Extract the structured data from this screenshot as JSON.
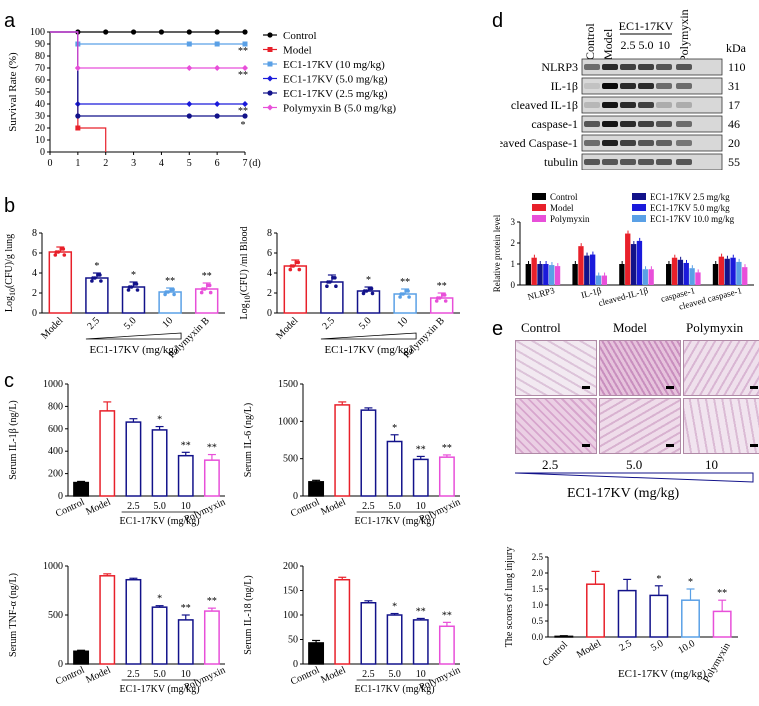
{
  "panel_letters": [
    "a",
    "b",
    "c",
    "d",
    "e"
  ],
  "chart_a": {
    "type": "line",
    "ylabel": "Survival Rate (%)",
    "xunit": "(d)",
    "x": [
      0,
      1,
      2,
      3,
      4,
      5,
      6,
      7
    ],
    "xticks": [
      "0",
      "1",
      "2",
      "3",
      "4",
      "5",
      "6",
      "7"
    ],
    "yticks": [
      "0",
      "10",
      "20",
      "30",
      "40",
      "50",
      "60",
      "70",
      "80",
      "90",
      "100"
    ],
    "ylim": [
      0,
      100
    ],
    "series": [
      {
        "name": "Control",
        "color": "#000000",
        "marker": "circle",
        "points": [
          [
            0,
            100
          ],
          [
            1,
            100
          ],
          [
            2,
            100
          ],
          [
            3,
            100
          ],
          [
            4,
            100
          ],
          [
            5,
            100
          ],
          [
            6,
            100
          ],
          [
            7,
            100
          ]
        ],
        "sig": ""
      },
      {
        "name": "Model",
        "color": "#e8202a",
        "marker": "square",
        "points": [
          [
            0,
            100
          ],
          [
            1,
            100
          ],
          [
            1,
            20
          ],
          [
            2,
            20
          ],
          [
            2,
            0
          ]
        ],
        "sig": ""
      },
      {
        "name": "EC1-17KV (10 mg/kg)",
        "color": "#5aa0e6",
        "marker": "square",
        "points": [
          [
            0,
            100
          ],
          [
            1,
            100
          ],
          [
            1,
            90
          ],
          [
            7,
            90
          ]
        ],
        "sig": "**"
      },
      {
        "name": "EC1-17KV (5.0 mg/kg)",
        "color": "#1a1adb",
        "marker": "diamond",
        "points": [
          [
            0,
            100
          ],
          [
            1,
            100
          ],
          [
            1,
            40
          ],
          [
            7,
            40
          ]
        ],
        "sig": "**"
      },
      {
        "name": "EC1-17KV (2.5 mg/kg)",
        "color": "#12128a",
        "marker": "circle",
        "points": [
          [
            0,
            100
          ],
          [
            1,
            100
          ],
          [
            1,
            30
          ],
          [
            7,
            30
          ]
        ],
        "sig": "*"
      },
      {
        "name": "Polymyxin B (5.0 mg/kg)",
        "color": "#e84fd9",
        "marker": "diamond",
        "points": [
          [
            0,
            100
          ],
          [
            1,
            100
          ],
          [
            1,
            70
          ],
          [
            7,
            70
          ]
        ],
        "sig": "**"
      }
    ]
  },
  "chart_b": [
    {
      "type": "bar",
      "ylabel": "Log10(CFU)/g lung",
      "ylabel_main": "Log",
      "ylabel_sub": "10",
      "ylabel_rest": "(CFU)/g lung",
      "ylim": [
        0,
        8
      ],
      "yticks": [
        "0",
        "2",
        "4",
        "6",
        "8"
      ],
      "categories": [
        "Model",
        "2.5",
        "5.0",
        "10",
        "Polymyxin B"
      ],
      "values": [
        6.1,
        3.5,
        2.6,
        2.1,
        2.4
      ],
      "errors": [
        0.5,
        0.5,
        0.5,
        0.4,
        0.6
      ],
      "sig": [
        "",
        "*",
        "*",
        "**",
        "**"
      ],
      "group_label": "EC1-17KV (mg/kg)"
    },
    {
      "type": "bar",
      "ylabel": "Log10(CFU) /ml Blood",
      "ylabel_main": "Log",
      "ylabel_sub": "10",
      "ylabel_rest": "(CFU) /ml Blood",
      "ylim": [
        0,
        8
      ],
      "yticks": [
        "0",
        "2",
        "4",
        "6",
        "8"
      ],
      "categories": [
        "Model",
        "2.5",
        "5.0",
        "10",
        "Polymyxin B"
      ],
      "values": [
        4.7,
        3.1,
        2.2,
        1.9,
        1.5
      ],
      "errors": [
        0.6,
        0.7,
        0.4,
        0.5,
        0.5
      ],
      "sig": [
        "",
        "",
        "*",
        "**",
        "**"
      ],
      "group_label": "EC1-17KV (mg/kg)"
    }
  ],
  "chart_c": [
    {
      "type": "bar",
      "ylabel": "Serum IL-1β (ng/L)",
      "ylim": [
        0,
        1000
      ],
      "yticks": [
        "0",
        "200",
        "400",
        "600",
        "800",
        "1000"
      ],
      "categories": [
        "Control",
        "Model",
        "2.5",
        "5.0",
        "10",
        "Polymyxin"
      ],
      "values": [
        120,
        760,
        660,
        590,
        360,
        320
      ],
      "errors": [
        10,
        80,
        30,
        30,
        30,
        50
      ],
      "sig": [
        "",
        "",
        "",
        "*",
        "**",
        "**"
      ],
      "group_label": "EC1-17KV (mg/kg)",
      "sub_labels": [
        "2.5",
        "5.0",
        "10"
      ]
    },
    {
      "type": "bar",
      "ylabel": "Serum IL-6 (ng/L)",
      "ylim": [
        0,
        1500
      ],
      "yticks": [
        "0",
        "500",
        "1000",
        "1500"
      ],
      "categories": [
        "Control",
        "Model",
        "2.5",
        "5.0",
        "10",
        "Polymyxin"
      ],
      "values": [
        190,
        1220,
        1150,
        730,
        490,
        520
      ],
      "errors": [
        20,
        40,
        30,
        90,
        40,
        30
      ],
      "sig": [
        "",
        "",
        "",
        "*",
        "**",
        "**"
      ],
      "group_label": "EC1-17KV (mg/kg)",
      "sub_labels": [
        "2.5",
        "5.0",
        "10"
      ]
    },
    {
      "type": "bar",
      "ylabel": "Serum TNF-α (ng/L)",
      "ylim": [
        0,
        1000
      ],
      "yticks": [
        "0",
        "500",
        "1000"
      ],
      "categories": [
        "Control",
        "Model",
        "2.5",
        "5.0",
        "10",
        "Polymyxin"
      ],
      "values": [
        130,
        900,
        860,
        580,
        450,
        540
      ],
      "errors": [
        10,
        20,
        15,
        15,
        50,
        30
      ],
      "sig": [
        "",
        "",
        "",
        "*",
        "**",
        "**"
      ],
      "group_label": "EC1-17KV (mg/kg)",
      "sub_labels": [
        "2.5",
        "5.0",
        "10"
      ]
    },
    {
      "type": "bar",
      "ylabel": "Serum IL-18 (ng/L)",
      "ylim": [
        0,
        200
      ],
      "yticks": [
        "0",
        "50",
        "100",
        "150",
        "200"
      ],
      "categories": [
        "Control",
        "Model",
        "2.5",
        "5.0",
        "10",
        "Polymyxin"
      ],
      "values": [
        43,
        172,
        125,
        100,
        90,
        77
      ],
      "errors": [
        5,
        5,
        4,
        3,
        3,
        8
      ],
      "sig": [
        "",
        "",
        "",
        "*",
        "**",
        "**"
      ],
      "group_label": "EC1-17KV (mg/kg)",
      "sub_labels": [
        "2.5",
        "5.0",
        "10"
      ]
    }
  ],
  "western": {
    "lanes": [
      "Control",
      "Model",
      "2.5",
      "5.0",
      "10",
      "Polymyxin"
    ],
    "group_label": "EC1-17KV",
    "kda_header": "kDa",
    "rows": [
      {
        "name": "NLRP3",
        "kda": "110"
      },
      {
        "name": "IL-1β",
        "kda": "31"
      },
      {
        "name": "cleaved IL-1β",
        "kda": "17"
      },
      {
        "name": "caspase-1",
        "kda": "46"
      },
      {
        "name": "cleaved Caspase-1",
        "kda": "20"
      },
      {
        "name": "tubulin",
        "kda": "55"
      }
    ]
  },
  "chart_d": {
    "type": "bar",
    "ylabel": "Relative protein level",
    "ylim": [
      0,
      3
    ],
    "yticks": [
      "0",
      "1",
      "2",
      "3"
    ],
    "categories": [
      "NLRP3",
      "IL-1β",
      "cleaved-IL-1β",
      "caspase-1",
      "cleaved caspase-1"
    ],
    "series": [
      {
        "name": "Control",
        "color": "#000000",
        "values": [
          1.0,
          1.0,
          1.0,
          1.0,
          1.0
        ]
      },
      {
        "name": "Model",
        "color": "#e8202a",
        "values": [
          1.3,
          1.85,
          2.45,
          1.3,
          1.35
        ]
      },
      {
        "name": "EC1-17KV 2.5 mg/kg",
        "color": "#12128a",
        "values": [
          1.0,
          1.4,
          1.95,
          1.2,
          1.25
        ]
      },
      {
        "name": "EC1-17KV 5.0 mg/kg",
        "color": "#1a1adb",
        "values": [
          1.0,
          1.45,
          2.1,
          1.05,
          1.3
        ]
      },
      {
        "name": "EC1-17KV 10.0 mg/kg",
        "color": "#5aa0e6",
        "values": [
          0.95,
          0.45,
          0.75,
          0.8,
          1.1
        ]
      },
      {
        "name": "Polymyxin",
        "color": "#e84fd9",
        "values": [
          0.9,
          0.45,
          0.75,
          0.6,
          0.85
        ]
      }
    ],
    "legend_left": [
      "Control",
      "Model",
      "Polymyxin"
    ],
    "legend_right": [
      "EC1-17KV 2.5 mg/kg",
      "EC1-17KV 5.0 mg/kg",
      "EC1-17KV 10.0 mg/kg"
    ]
  },
  "histology": {
    "top_labels": [
      "Control",
      "Model",
      "Polymyxin"
    ],
    "bottom_labels": [
      "2.5",
      "5.0",
      "10"
    ],
    "axis_label": "EC1-17KV (mg/kg)"
  },
  "chart_e": {
    "type": "bar",
    "ylabel": "The scores of lung injury",
    "ylim": [
      0,
      2.5
    ],
    "yticks": [
      "0.0",
      "0.5",
      "1.0",
      "1.5",
      "2.0",
      "2.5"
    ],
    "categories": [
      "Control",
      "Model",
      "2.5",
      "5.0",
      "10.0",
      "Polymyxin"
    ],
    "values": [
      0.02,
      1.65,
      1.45,
      1.3,
      1.15,
      0.8
    ],
    "errors": [
      0.02,
      0.4,
      0.35,
      0.3,
      0.35,
      0.35
    ],
    "sig": [
      "",
      "",
      "",
      "*",
      "*",
      "**"
    ],
    "group_label": "EC1-17KV (mg/kg)"
  },
  "colors": {
    "black": "#000000",
    "red": "#e8202a",
    "navy": "#12128a",
    "blue": "#1a1adb",
    "light_blue": "#5aa0e6",
    "magenta": "#e84fd9"
  }
}
